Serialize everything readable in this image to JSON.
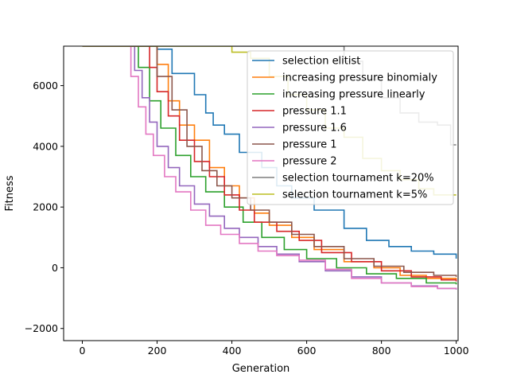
{
  "chart_data": {
    "type": "line",
    "title": "",
    "xlabel": "Generation",
    "ylabel": "Fitness",
    "xlim": [
      -50,
      1005
    ],
    "ylim": [
      -2400,
      7300
    ],
    "x_ticks": [
      0,
      200,
      400,
      600,
      800,
      1000
    ],
    "x_tick_labels": [
      "0",
      "200",
      "400",
      "600",
      "800",
      "1000"
    ],
    "y_ticks": [
      -2000,
      0,
      2000,
      4000,
      6000
    ],
    "y_tick_labels": [
      "−2000",
      "0",
      "2000",
      "4000",
      "6000"
    ],
    "grid": false,
    "legend_position": "top-right",
    "series": [
      {
        "name": "selection elitist",
        "color": "#1f77b4",
        "x": [
          0,
          170,
          200,
          240,
          300,
          330,
          350,
          380,
          420,
          480,
          520,
          560,
          620,
          700,
          760,
          820,
          880,
          940,
          1000
        ],
        "y": [
          7300,
          7300,
          7200,
          6400,
          5700,
          5100,
          4700,
          4400,
          3800,
          3300,
          2700,
          2300,
          1900,
          1300,
          900,
          700,
          550,
          450,
          300
        ]
      },
      {
        "name": "increasing pressure binomialy",
        "color": "#ff7f0e",
        "x": [
          0,
          180,
          200,
          230,
          260,
          300,
          340,
          380,
          420,
          460,
          500,
          560,
          620,
          700,
          780,
          850,
          920,
          1000
        ],
        "y": [
          7300,
          7300,
          6700,
          5500,
          4700,
          4200,
          3300,
          2700,
          2300,
          1800,
          1400,
          1000,
          600,
          200,
          0,
          -250,
          -350,
          -400
        ]
      },
      {
        "name": "increasing pressure linearly",
        "color": "#2ca02c",
        "x": [
          0,
          120,
          150,
          180,
          210,
          250,
          290,
          330,
          380,
          430,
          480,
          540,
          600,
          680,
          760,
          840,
          920,
          1000
        ],
        "y": [
          7300,
          7300,
          6600,
          5500,
          4600,
          3700,
          3000,
          2500,
          2000,
          1500,
          1000,
          600,
          300,
          0,
          -200,
          -350,
          -500,
          -550
        ]
      },
      {
        "name": "pressure 1.1",
        "color": "#d62728",
        "x": [
          0,
          150,
          180,
          200,
          230,
          260,
          300,
          340,
          380,
          420,
          460,
          520,
          580,
          640,
          720,
          800,
          880,
          960,
          1000
        ],
        "y": [
          7300,
          7300,
          6600,
          5800,
          5000,
          4200,
          3500,
          3000,
          2400,
          1900,
          1500,
          1200,
          900,
          500,
          200,
          -100,
          -300,
          -400,
          -450
        ]
      },
      {
        "name": "pressure 1.6",
        "color": "#9467bd",
        "x": [
          0,
          120,
          140,
          160,
          180,
          200,
          230,
          260,
          300,
          340,
          380,
          420,
          470,
          520,
          580,
          650,
          720,
          800,
          880,
          950,
          1000
        ],
        "y": [
          7300,
          7300,
          6500,
          5600,
          4800,
          4000,
          3300,
          2700,
          2100,
          1700,
          1300,
          1000,
          700,
          450,
          200,
          -100,
          -300,
          -500,
          -600,
          -680,
          -720
        ]
      },
      {
        "name": "pressure 1",
        "color": "#8c564b",
        "x": [
          0,
          160,
          200,
          240,
          280,
          320,
          360,
          400,
          450,
          500,
          560,
          620,
          700,
          780,
          860,
          940,
          1000
        ],
        "y": [
          7300,
          7300,
          6300,
          5200,
          4000,
          3200,
          2700,
          2300,
          1900,
          1500,
          1100,
          700,
          300,
          50,
          -150,
          -250,
          -300
        ]
      },
      {
        "name": "pressure 2",
        "color": "#e377c2",
        "x": [
          0,
          110,
          130,
          150,
          170,
          190,
          220,
          250,
          290,
          330,
          370,
          420,
          470,
          520,
          580,
          650,
          720,
          800,
          880,
          950,
          1000
        ],
        "y": [
          7300,
          7300,
          6300,
          5300,
          4400,
          3700,
          3000,
          2500,
          1900,
          1400,
          1100,
          800,
          550,
          400,
          250,
          -50,
          -350,
          -500,
          -620,
          -680,
          -700
        ]
      },
      {
        "name": "selection tournament k=20%",
        "color": "#7f7f7f",
        "x": [
          0,
          680,
          700,
          750,
          800,
          850,
          900,
          950,
          985,
          1000
        ],
        "y": [
          7300,
          7300,
          6800,
          6200,
          5600,
          5100,
          4800,
          4700,
          4050,
          4050
        ]
      },
      {
        "name": "selection tournament k=5%",
        "color": "#bcbd22",
        "x": [
          0,
          390,
          400,
          450,
          500,
          550,
          600,
          650,
          700,
          750,
          800,
          850,
          900,
          940,
          1000
        ],
        "y": [
          7300,
          7300,
          7100,
          6900,
          6300,
          5700,
          5200,
          4600,
          4300,
          3600,
          3200,
          2900,
          2600,
          2400,
          2400
        ]
      }
    ]
  }
}
